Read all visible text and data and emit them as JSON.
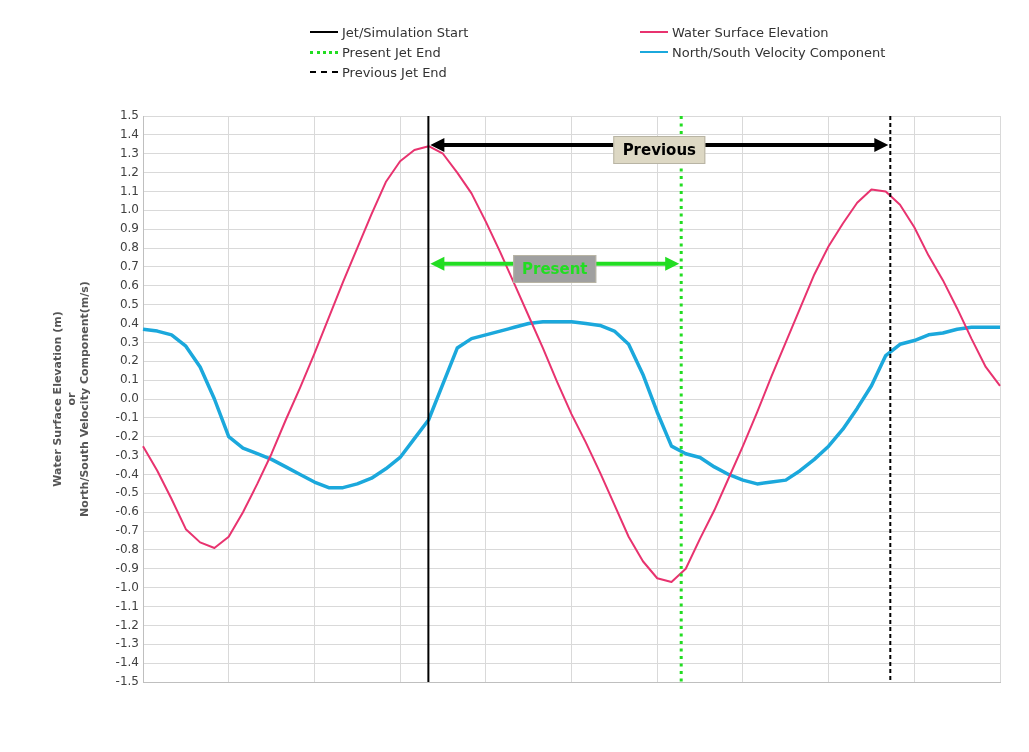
{
  "chart_data": {
    "type": "line",
    "ylabel": "Water Surface Elevation (m)\nor\nNorth/South Velocity Component(m/s)",
    "categories": [
      null,
      null,
      null,
      null,
      null,
      null,
      null,
      null,
      null,
      null,
      null,
      null,
      null,
      null,
      null,
      null,
      null,
      null,
      null,
      null,
      null,
      null,
      null,
      null,
      null,
      null,
      null,
      null,
      null,
      null,
      null,
      null,
      null,
      null,
      null,
      null,
      null,
      null,
      null,
      null,
      null,
      null,
      null,
      null,
      null,
      null,
      null,
      null,
      null,
      null,
      null,
      null,
      null,
      null,
      null,
      null,
      null,
      null,
      null,
      null,
      null
    ],
    "ylim": [
      -1.5,
      1.5
    ],
    "yticks": [
      -1.5,
      -1.4,
      -1.3,
      -1.2,
      -1.1,
      {
        "value": -1,
        "label": "-1.0"
      },
      -0.9,
      -0.8,
      -0.7,
      -0.6,
      -0.5,
      -0.4,
      -0.3,
      -0.2,
      -0.1,
      {
        "value": 0,
        "label": "0.0"
      },
      0.1,
      0.2,
      0.3,
      0.4,
      0.5,
      0.6,
      0.7,
      0.8,
      0.9,
      {
        "value": 1,
        "label": "1.0"
      },
      1.1,
      1.2,
      1.3,
      1.4,
      1.5
    ],
    "tick_labels": "y",
    "grid": true,
    "legend": "top",
    "marker": "none",
    "line_style": "solid",
    "series": [
      {
        "name": "Water Surface Elevation",
        "color": "#e8336f",
        "values": [
          -0.25,
          -0.38,
          -0.53,
          -0.69,
          -0.76,
          -0.79,
          -0.73,
          -0.6,
          -0.45,
          -0.29,
          -0.11,
          0.06,
          0.24,
          0.43,
          0.62,
          0.8,
          0.98,
          1.15,
          1.26,
          1.32,
          1.34,
          1.3,
          1.2,
          1.09,
          0.94,
          0.78,
          0.61,
          0.44,
          0.27,
          0.09,
          -0.08,
          -0.23,
          -0.39,
          -0.56,
          -0.73,
          -0.86,
          -0.95,
          -0.97,
          -0.9,
          -0.74,
          -0.59,
          -0.42,
          -0.25,
          -0.07,
          0.12,
          0.3,
          0.48,
          0.66,
          0.81,
          0.93,
          1.04,
          1.11,
          1.1,
          1.03,
          0.91,
          0.76,
          0.63,
          0.48,
          0.32,
          0.17,
          0.07
        ]
      },
      {
        "name": "North/South Velocity Component",
        "color": "#1ba8dc",
        "values": [
          0.37,
          0.36,
          0.34,
          0.28,
          0.17,
          0,
          -0.2,
          -0.26,
          -0.29,
          -0.32,
          -0.36,
          -0.4,
          -0.44,
          -0.47,
          -0.47,
          -0.45,
          -0.42,
          -0.37,
          -0.31,
          -0.21,
          -0.11,
          0.08,
          0.27,
          0.32,
          0.34,
          0.36,
          0.38,
          0.4,
          0.41,
          0.41,
          0.41,
          0.4,
          0.39,
          0.36,
          0.29,
          0.13,
          -0.07,
          -0.25,
          -0.29,
          -0.31,
          -0.36,
          -0.4,
          -0.43,
          -0.45,
          -0.44,
          -0.43,
          -0.38,
          -0.32,
          -0.25,
          -0.16,
          -0.05,
          0.07,
          0.23,
          0.29,
          0.31,
          0.34,
          0.35,
          0.37,
          0.38,
          0.38,
          0.38
        ]
      }
    ],
    "ref_lines": [
      {
        "axis": "x",
        "label": "Jet/Simulation Start",
        "color": "#000000",
        "line_style": "solid"
      },
      {
        "axis": "x",
        "label": "Present Jet End",
        "color": "#22dd22",
        "line_style": "dotted"
      },
      {
        "axis": "x",
        "label": "Previous Jet End",
        "color": "#000000",
        "line_style": "dashed"
      }
    ],
    "annotations": [
      "Previous",
      "Present"
    ]
  }
}
